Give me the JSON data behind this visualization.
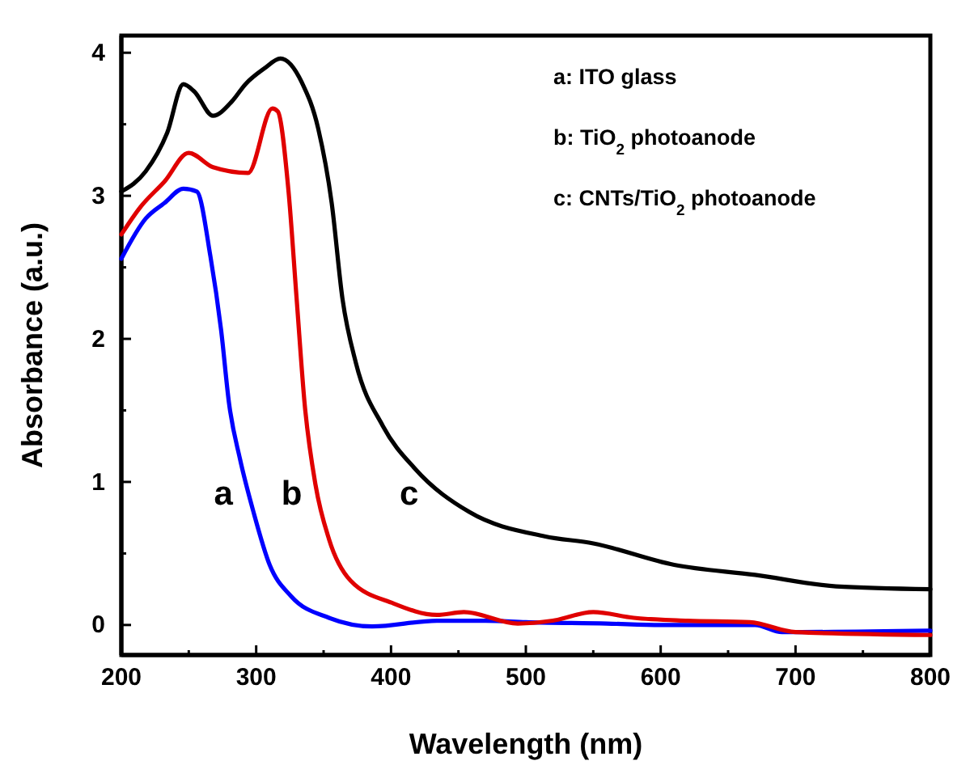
{
  "chart_data": {
    "type": "line",
    "xlabel": "Wavelength (nm)",
    "ylabel": "Absorbance (a.u.)",
    "xlim": [
      200,
      800
    ],
    "ylim": [
      -0.21,
      4.12
    ],
    "xticks": [
      200,
      {
        "value": 250,
        "label": null
      },
      300,
      {
        "value": 350,
        "label": null
      },
      400,
      {
        "value": 450,
        "label": null
      },
      500,
      {
        "value": 550,
        "label": null
      },
      600,
      {
        "value": 650,
        "label": null
      },
      700,
      {
        "value": 750,
        "label": null
      },
      800
    ],
    "yticks": [
      0,
      {
        "value": 0.5,
        "label": null
      },
      1,
      {
        "value": 1.5,
        "label": null
      },
      2,
      {
        "value": 2.5,
        "label": null
      },
      3,
      {
        "value": 3.5,
        "label": null
      },
      4
    ],
    "grid": false,
    "legend": false,
    "marker": "none",
    "line_style": "solid",
    "annotations": [
      "a: ITO glass",
      "b: TiO$_{2}$ photoanode",
      "c: CNTs/TiO$_{2}$ photoanode"
    ],
    "series": [
      {
        "name": "a",
        "color": "#0000ff",
        "x": [
          200,
          218,
          232,
          246,
          256,
          266,
          274,
          280,
          288,
          298,
          310,
          326,
          354,
          386,
          434,
          470,
          500,
          560,
          600,
          670,
          690,
          800
        ],
        "values": [
          2.56,
          2.84,
          2.95,
          3.05,
          3.03,
          2.58,
          2.06,
          1.54,
          1.16,
          0.79,
          0.42,
          0.2,
          0.05,
          -0.01,
          0.03,
          0.03,
          0.02,
          0.01,
          0.0,
          0.0,
          -0.05,
          -0.04
        ]
      },
      {
        "name": "b",
        "color": "#e00000",
        "x": [
          200,
          214,
          232,
          250,
          268,
          294,
          312,
          316,
          324,
          330,
          336,
          344,
          354,
          370,
          402,
          434,
          454,
          494,
          520,
          550,
          580,
          620,
          666,
          700,
          800
        ],
        "values": [
          2.73,
          2.92,
          3.1,
          3.3,
          3.2,
          3.16,
          3.61,
          3.59,
          3.03,
          2.28,
          1.54,
          0.98,
          0.6,
          0.31,
          0.15,
          0.07,
          0.09,
          0.01,
          0.03,
          0.09,
          0.05,
          0.03,
          0.02,
          -0.05,
          -0.07
        ]
      },
      {
        "name": "c",
        "color": "#000000",
        "x": [
          200,
          218,
          234,
          246,
          254,
          268,
          282,
          292,
          306,
          318,
          334,
          346,
          356,
          364,
          374,
          394,
          418,
          458,
          514,
          550,
          610,
          670,
          730,
          800
        ],
        "values": [
          3.03,
          3.17,
          3.44,
          3.78,
          3.73,
          3.56,
          3.66,
          3.78,
          3.89,
          3.96,
          3.79,
          3.47,
          2.95,
          2.28,
          1.83,
          1.39,
          1.09,
          0.79,
          0.62,
          0.57,
          0.42,
          0.35,
          0.27,
          0.25
        ]
      }
    ]
  }
}
